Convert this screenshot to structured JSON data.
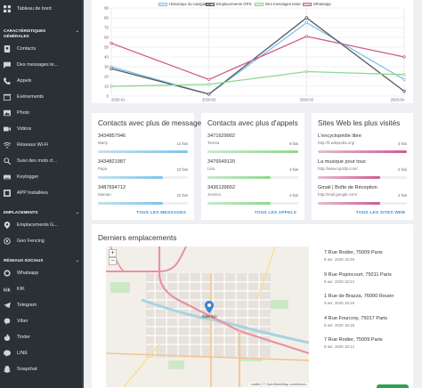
{
  "sidebar": {
    "top_items": [
      {
        "label": "Tableau de bord",
        "icon": "dashboard-icon"
      }
    ],
    "sections": [
      {
        "title": "Caractéristiques générales",
        "items": [
          {
            "label": "Contacts",
            "icon": "contacts-icon"
          },
          {
            "label": "Des messages te...",
            "icon": "message-icon"
          },
          {
            "label": "Appels",
            "icon": "phone-icon"
          },
          {
            "label": "Événements",
            "icon": "calendar-icon"
          },
          {
            "label": "Photo",
            "icon": "photo-icon"
          },
          {
            "label": "Vidéos",
            "icon": "video-icon"
          },
          {
            "label": "Réseaux Wi-Fi",
            "icon": "wifi-icon"
          },
          {
            "label": "Suivi des mots cl...",
            "icon": "keyword-icon"
          },
          {
            "label": "Keylogger",
            "icon": "keyboard-icon"
          },
          {
            "label": "APP Installées",
            "icon": "apps-icon"
          }
        ]
      },
      {
        "title": "Emplacements",
        "items": [
          {
            "label": "Emplacements G...",
            "icon": "location-pin-icon"
          },
          {
            "label": "Geo Fencing",
            "icon": "geofence-icon"
          }
        ]
      },
      {
        "title": "Réseaux sociaux",
        "items": [
          {
            "label": "Whatsapp",
            "icon": "whatsapp-icon"
          },
          {
            "label": "KIK",
            "icon": "kik-icon"
          },
          {
            "label": "Telegram",
            "icon": "telegram-icon"
          },
          {
            "label": "Viber",
            "icon": "viber-icon"
          },
          {
            "label": "Tinder",
            "icon": "tinder-icon"
          },
          {
            "label": "LINE",
            "icon": "line-icon"
          },
          {
            "label": "Snapchat",
            "icon": "snapchat-icon"
          }
        ]
      }
    ]
  },
  "chart_data": {
    "type": "line",
    "categories": [
      "2020-01",
      "2020-02",
      "2020-03",
      "2020-04"
    ],
    "series": [
      {
        "name": "Historique du navigateur",
        "color": "#7fc4ea",
        "values": [
          30,
          2,
          75,
          17
        ]
      },
      {
        "name": "Emplacements GPS",
        "color": "#555b61",
        "values": [
          28,
          2,
          80,
          5
        ]
      },
      {
        "name": "Des messages texte",
        "color": "#8dd98d",
        "values": [
          10,
          12,
          25,
          22
        ]
      },
      {
        "name": "Whatsapp",
        "color": "#cf5c8f",
        "values": [
          54,
          17,
          61,
          40
        ]
      }
    ],
    "ylim": [
      0,
      90
    ],
    "yticks": [
      0,
      10,
      20,
      30,
      40,
      50,
      60,
      70,
      80,
      90
    ],
    "grid": true,
    "legend_position": "top"
  },
  "contacts_messages": {
    "title": "Contacts avec plus de messages",
    "entries": [
      {
        "number": "3434857946",
        "name": "Marty",
        "badge": "14 fois",
        "fill": 1.0
      },
      {
        "number": "3434821987",
        "name": "Papa",
        "badge": "10 fois",
        "fill": 0.72
      },
      {
        "number": "3487694712",
        "name": "Maman",
        "badge": "10 fois",
        "fill": 0.72
      }
    ],
    "link": "TOUS LES MESSAGES",
    "color": "#7fc4ea"
  },
  "contacts_calls": {
    "title": "Contacts avec plus d'appels",
    "entries": [
      {
        "number": "3471629902",
        "name": "Teresa",
        "badge": "6 fois",
        "fill": 1.0
      },
      {
        "number": "3476549120",
        "name": "Lisa",
        "badge": "4 fois",
        "fill": 0.7
      },
      {
        "number": "3436139652",
        "name": "Jessica",
        "badge": "4 fois",
        "fill": 0.7
      }
    ],
    "link": "TOUS LES APPELS",
    "color": "#8dd98d"
  },
  "sites": {
    "title": "Sites Web les plus visités",
    "entries": [
      {
        "number": "L'encyclopédie libre",
        "name": "http://fr.wikipedia.org/",
        "badge": "3 fois",
        "fill": 1.0
      },
      {
        "number": "La musique pour tous",
        "name": "http://www.spotify.com/",
        "badge": "2 fois",
        "fill": 0.7
      },
      {
        "number": "Gmail | Boîte de Réception",
        "name": "http://mail.google.com/",
        "badge": "2 fois",
        "fill": 0.7
      }
    ],
    "link": "TOUS LES SITES WEB",
    "color": "#cf5c8f"
  },
  "locations": {
    "title": "Derniers emplacements",
    "zoom_in": "+",
    "zoom_out": "−",
    "map_marker_label": "Waterloo",
    "attribution": "Leaflet | © OpenStreetMap contributors",
    "entries": [
      {
        "address": "7 Rue Rodier, 75009 Paris",
        "date": "9 avr. 2020 18:29"
      },
      {
        "address": "9 Rue Popincourt, 75011 Paris",
        "date": "9 avr. 2020 18:24"
      },
      {
        "address": "1 Rue de Brazza, 76000 Rouen",
        "date": "9 avr. 2020 18:19"
      },
      {
        "address": "4 Rue Fourcroy, 75017 Paris",
        "date": "9 avr. 2020 18:18"
      },
      {
        "address": "7 Rue Rodier, 75009 Paris",
        "date": "9 avr. 2020 18:14"
      }
    ]
  }
}
